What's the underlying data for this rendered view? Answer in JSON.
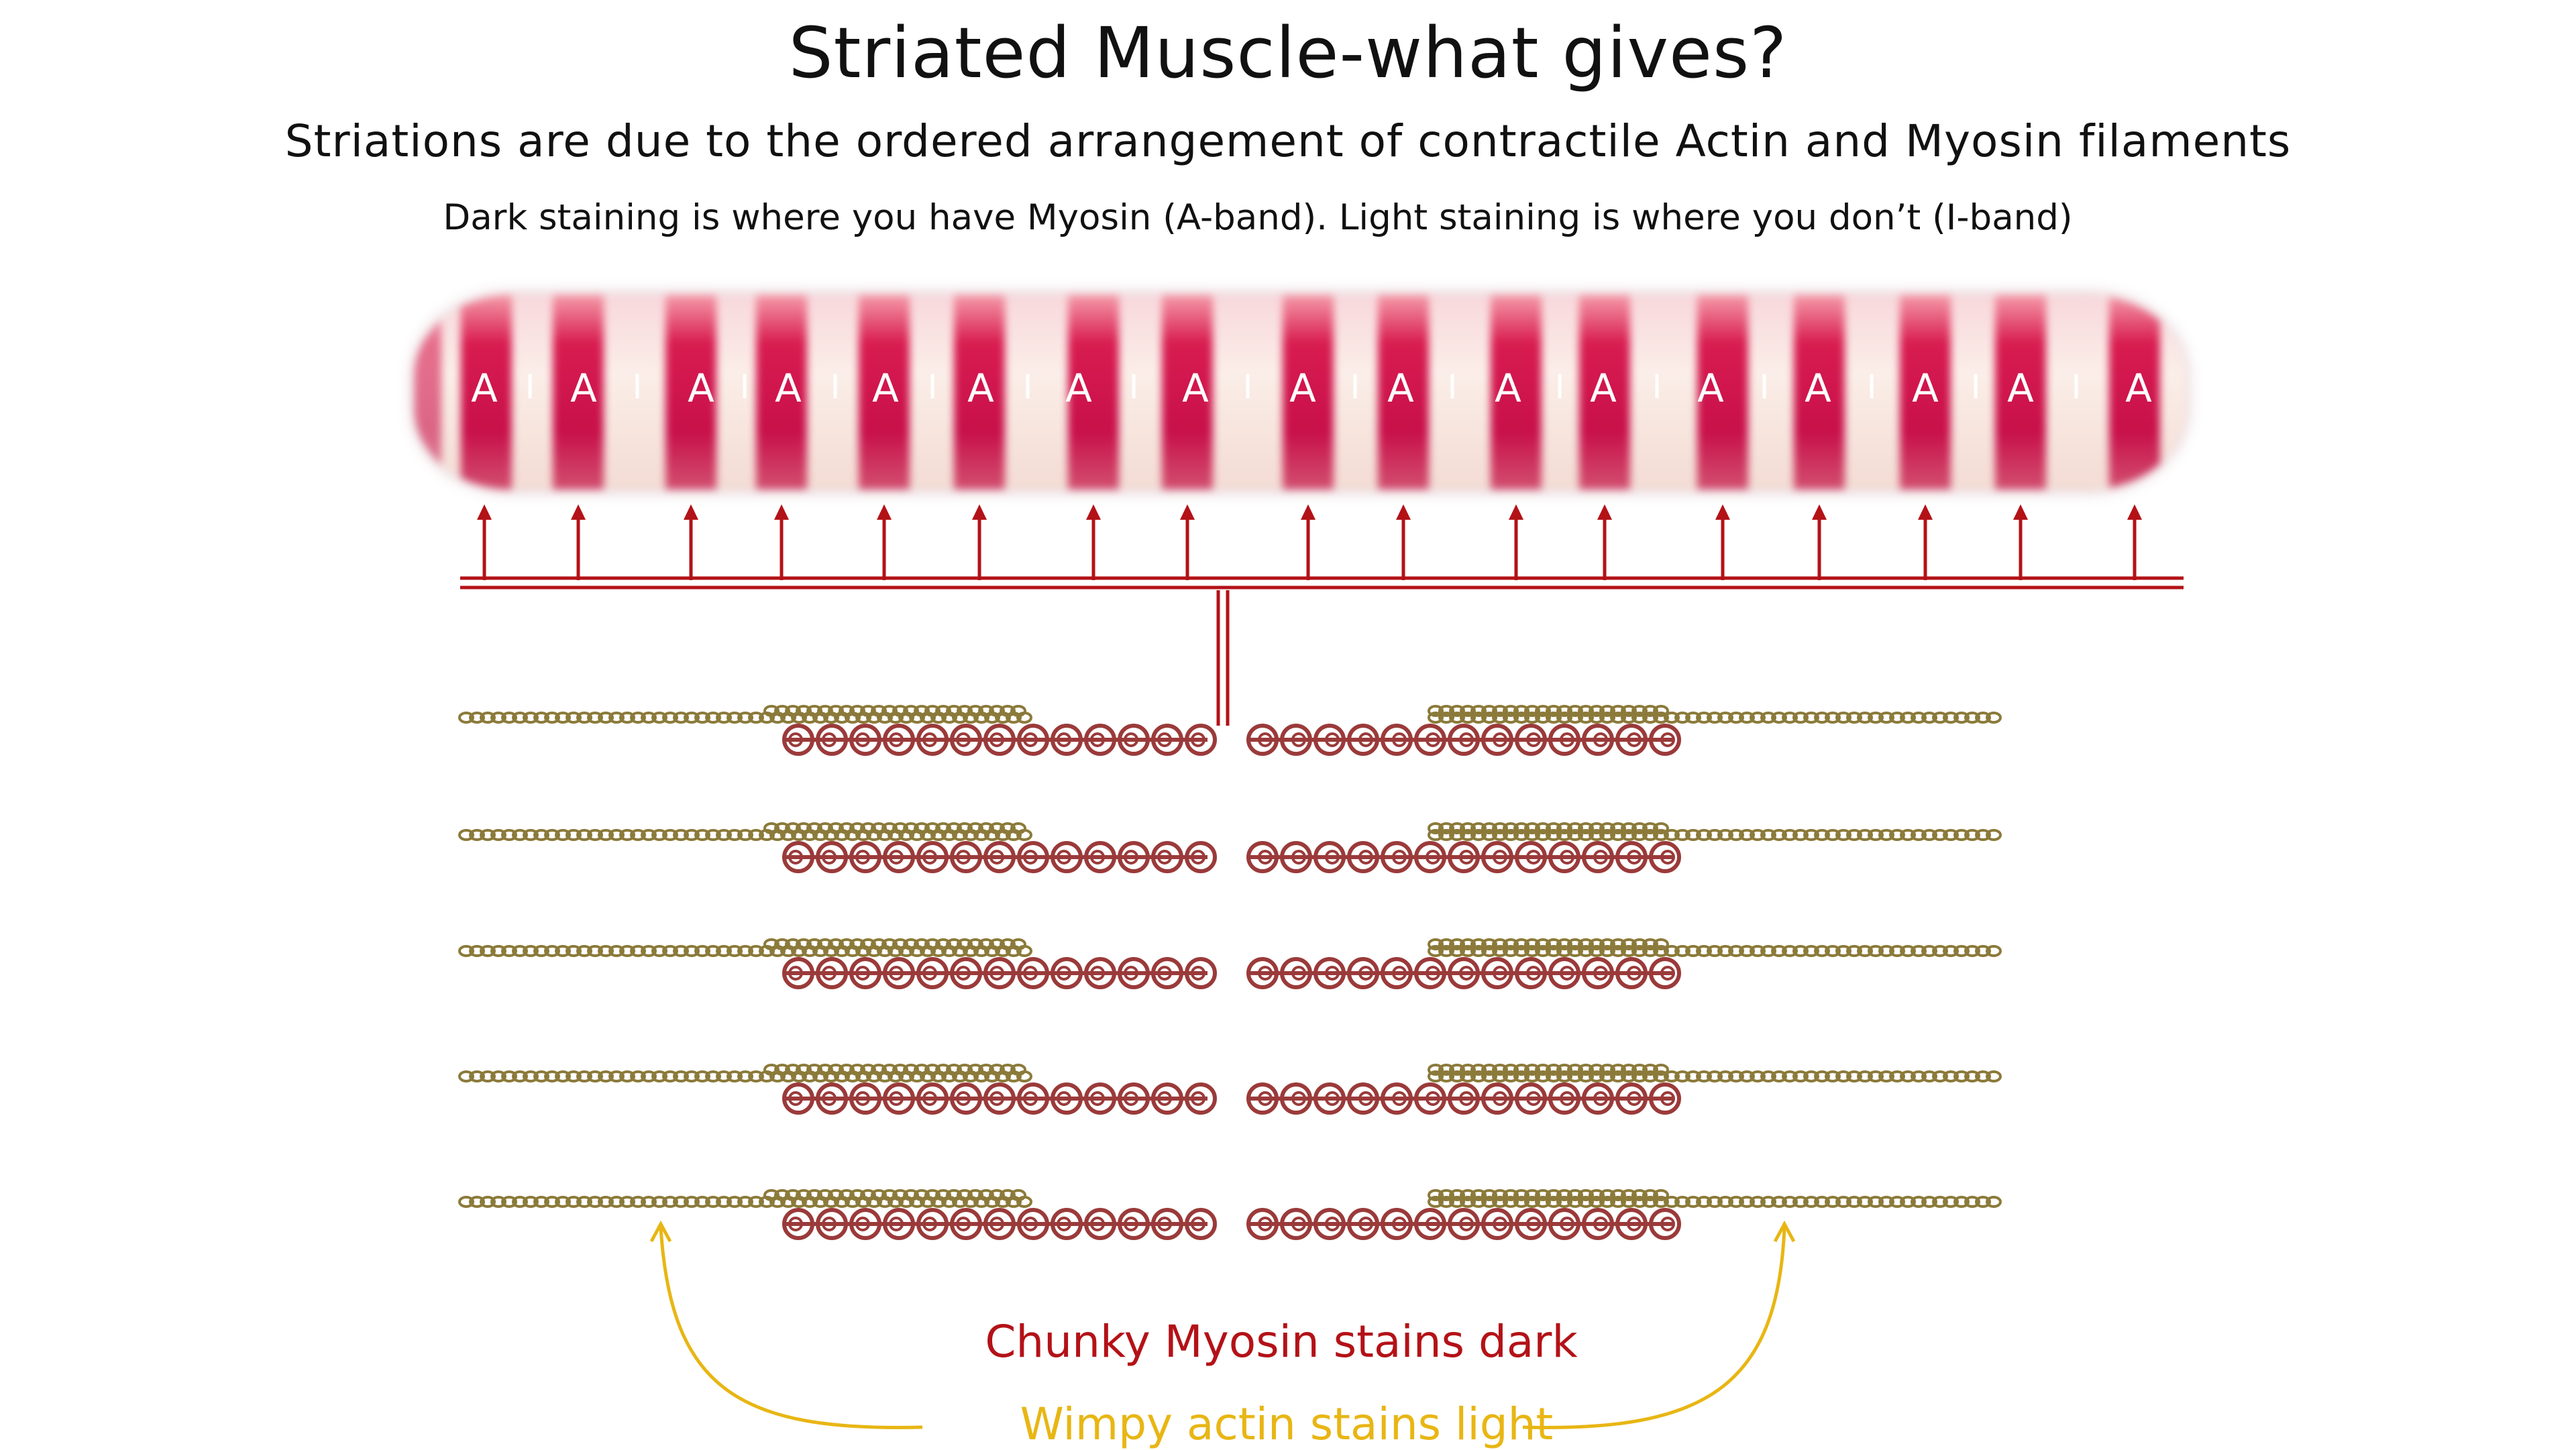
{
  "title": "Striated Muscle-what gives?",
  "subtitle": "Striations are due to the ordered arrangement of contractile Actin and Myosin filaments",
  "note": "Dark staining is where you have Myosin (A-band). Light staining is where you don’t (I-band)",
  "fiber": {
    "a_label": "A",
    "i_label": "I",
    "a_band_count": 18,
    "colors": {
      "dark_band": "#c8104a",
      "light_band": "#fbeee8"
    }
  },
  "arrow_color": "#b31217",
  "filament_rows": 5,
  "colors": {
    "actin": "#8b7a3a",
    "myosin": "#9b3a3a",
    "caption_red": "#b31217",
    "caption_yellow": "#e8b614"
  },
  "captions": {
    "myosin": "Chunky Myosin stains dark",
    "actin": "Wimpy actin stains light"
  }
}
